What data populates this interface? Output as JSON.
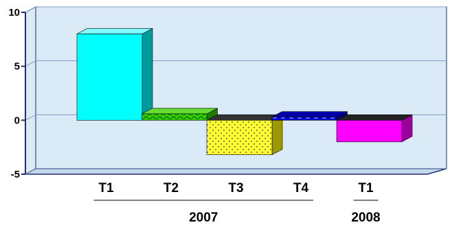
{
  "chart_data": {
    "type": "bar",
    "style": "3d-column",
    "categories": [
      "T1",
      "T2",
      "T3",
      "T4",
      "T1"
    ],
    "groups": [
      {
        "label": "2007",
        "categories": [
          "T1",
          "T2",
          "T3",
          "T4"
        ]
      },
      {
        "label": "2008",
        "categories": [
          "T1"
        ]
      }
    ],
    "values": [
      8.0,
      0.6,
      -3.2,
      0.3,
      -2.0
    ],
    "ylim": [
      -5,
      10
    ],
    "yticks": [
      -5,
      0,
      5,
      10
    ],
    "grid": true,
    "legend": "none",
    "colors": {
      "background": "#dbeaf7",
      "grid": "#7f9bc4",
      "axis": "#1e2f6e",
      "bars": [
        "#00ffff",
        "#33cc00",
        "#ffff33",
        "#0000cc",
        "#ff00ff"
      ],
      "bar_patterns": [
        "solid",
        "wave",
        "dots",
        "dashes",
        "solid"
      ]
    }
  }
}
